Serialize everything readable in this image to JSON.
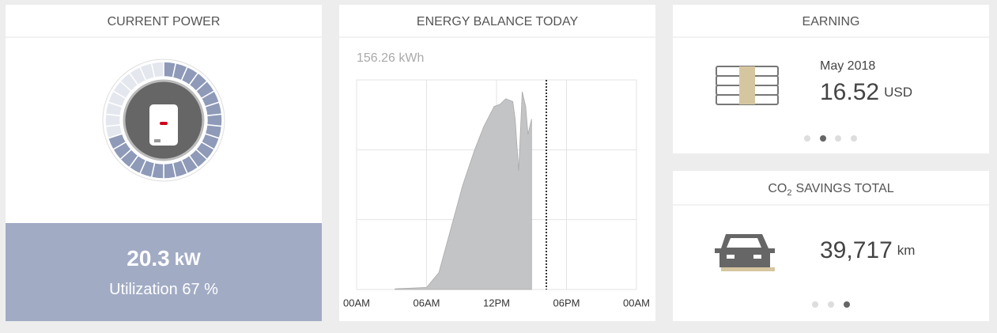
{
  "current_power": {
    "title": "CURRENT POWER",
    "value": "20.3",
    "unit": "kW",
    "utilization_label": "Utilization",
    "utilization": 67,
    "utilization_unit": "%"
  },
  "energy_balance": {
    "title": "ENERGY BALANCE TODAY",
    "total": "156.26 kWh",
    "chart": {
      "type": "area",
      "color": "#c3c4c6",
      "x": [
        3.3,
        6.0,
        7.05,
        8.07,
        9.08,
        10.1,
        10.9,
        11.8,
        12.3,
        12.8,
        13.4,
        13.6,
        13.9,
        14.2,
        14.5,
        14.7,
        15.0
      ],
      "values": [
        0.1,
        0.3,
        2.4,
        8.6,
        14.8,
        19.9,
        23.3,
        26.2,
        26.5,
        27.3,
        26.9,
        24.4,
        17.0,
        28.3,
        26.2,
        22.2,
        24.4
      ],
      "xlim": [
        0,
        24
      ],
      "ylim": [
        0,
        30
      ],
      "xticks": [
        {
          "value": 0,
          "label": "00AM"
        },
        {
          "value": 6,
          "label": "06AM"
        },
        {
          "value": 12,
          "label": "12PM"
        },
        {
          "value": 18,
          "label": "06PM"
        },
        {
          "value": 24,
          "label": "00AM"
        }
      ],
      "yticks": [
        0,
        10,
        20,
        30
      ],
      "grid": true
    }
  },
  "earning": {
    "title": "EARNING",
    "period": "May 2018",
    "amount": "16.52",
    "currency": "USD"
  },
  "co2": {
    "title_prefix": "CO",
    "title_subscript": "2",
    "title_suffix": "SAVINGS TOTAL",
    "value": "39,717",
    "unit": "km"
  }
}
